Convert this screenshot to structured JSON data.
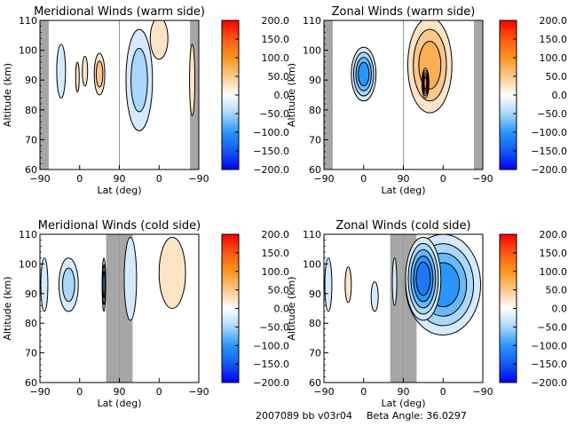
{
  "footer": {
    "run_id": "2007089 bb v03r04",
    "beta_label": "Beta Angle: 36.0297"
  },
  "colors": {
    "gray_band": "#a6a6a6",
    "contour_line": "#000000"
  },
  "chart_data": [
    {
      "type": "heatmap",
      "title": "Meridional Winds (warm side)",
      "xlabel": "Lat (deg)",
      "ylabel": "Altitude (km)",
      "x_ticks": [
        "-90",
        "0",
        "90",
        "0",
        "-90"
      ],
      "y_ticks": [
        60,
        70,
        80,
        90,
        100,
        110
      ],
      "ylim": [
        60,
        110
      ],
      "colorbar": {
        "min": -200,
        "max": 200,
        "ticks": [
          "200.0",
          "150.0",
          "100.0",
          "50.0",
          "0.0",
          "-50.0",
          "-100.0",
          "-150.0",
          "-200.0"
        ]
      },
      "gray_bands": [
        [
          -90,
          -70
        ],
        [
          -70,
          -90
        ]
      ],
      "blobs": [
        {
          "half": "left",
          "lat": -42,
          "alt": 93,
          "dlat": 10,
          "dalt": 9,
          "value": -30
        },
        {
          "half": "left",
          "lat": -5,
          "alt": 91,
          "dlat": 4,
          "dalt": 5,
          "value": 30
        },
        {
          "half": "left",
          "lat": 12,
          "alt": 93,
          "dlat": 6,
          "dalt": 5,
          "value": 25
        },
        {
          "half": "left",
          "lat": 45,
          "alt": 92,
          "dlat": 12,
          "dalt": 7,
          "value": 55
        },
        {
          "half": "right",
          "lat": 45,
          "alt": 90,
          "dlat": 30,
          "dalt": 17,
          "value": -55
        },
        {
          "half": "right",
          "lat": 0,
          "alt": 104,
          "dlat": 20,
          "dalt": 7,
          "value": 20
        },
        {
          "half": "right",
          "lat": -75,
          "alt": 90,
          "dlat": 6,
          "dalt": 12,
          "value": 25
        }
      ]
    },
    {
      "type": "heatmap",
      "title": "Zonal Winds (warm side)",
      "xlabel": "Lat (deg)",
      "ylabel": "Altitude (km)",
      "x_ticks": [
        "-90",
        "0",
        "90",
        "0",
        "-90"
      ],
      "y_ticks": [
        60,
        70,
        80,
        90,
        100,
        110
      ],
      "ylim": [
        60,
        110
      ],
      "colorbar": {
        "min": -200,
        "max": 200,
        "ticks": [
          "200.0",
          "150.0",
          "100.0",
          "50.0",
          "0.0",
          "-50.0",
          "-100.0",
          "-150.0",
          "-200.0"
        ]
      },
      "gray_bands": [
        [
          -90,
          -70
        ],
        [
          -70,
          -90
        ]
      ],
      "blobs": [
        {
          "half": "left",
          "lat": 0,
          "alt": 92,
          "dlat": 28,
          "dalt": 9,
          "value": -90
        },
        {
          "half": "right",
          "lat": 30,
          "alt": 95,
          "dlat": 50,
          "dalt": 16,
          "value": 85
        },
        {
          "half": "right",
          "lat": 40,
          "alt": 89,
          "dlat": 8,
          "dalt": 5,
          "value": 130
        }
      ]
    },
    {
      "type": "heatmap",
      "title": "Meridional Winds (cold side)",
      "xlabel": "Lat (deg)",
      "ylabel": "Altitude (km)",
      "x_ticks": [
        "-90",
        "0",
        "90",
        "0",
        "-90"
      ],
      "y_ticks": [
        60,
        70,
        80,
        90,
        100,
        110
      ],
      "ylim": [
        60,
        110
      ],
      "colorbar": {
        "min": -200,
        "max": 200,
        "ticks": [
          "200.0",
          "150.0",
          "100.0",
          "50.0",
          "0.0",
          "-50.0",
          "-100.0",
          "-150.0",
          "-200.0"
        ]
      },
      "gray_bands": [
        [
          60,
          120
        ]
      ],
      "blobs": [
        {
          "half": "left",
          "lat": -80,
          "alt": 93,
          "dlat": 8,
          "dalt": 9,
          "value": -30
        },
        {
          "half": "left",
          "lat": -25,
          "alt": 93,
          "dlat": 22,
          "dalt": 9,
          "value": -60
        },
        {
          "half": "left",
          "lat": 55,
          "alt": 93,
          "dlat": 4,
          "dalt": 9,
          "value": -70
        },
        {
          "half": "right",
          "lat": 65,
          "alt": 95,
          "dlat": 14,
          "dalt": 14,
          "value": -35
        },
        {
          "half": "right",
          "lat": -30,
          "alt": 97,
          "dlat": 30,
          "dalt": 12,
          "value": 35
        }
      ]
    },
    {
      "type": "heatmap",
      "title": "Zonal Winds (cold side)",
      "xlabel": "Lat (deg)",
      "ylabel": "Altitude (km)",
      "x_ticks": [
        "-90",
        "0",
        "90",
        "0",
        "-90"
      ],
      "y_ticks": [
        60,
        70,
        80,
        90,
        100,
        110
      ],
      "ylim": [
        60,
        110
      ],
      "colorbar": {
        "min": -200,
        "max": 200,
        "ticks": [
          "200.0",
          "150.0",
          "100.0",
          "50.0",
          "0.0",
          "-50.0",
          "-100.0",
          "-150.0",
          "-200.0"
        ]
      },
      "gray_bands": [
        [
          60,
          120
        ]
      ],
      "blobs": [
        {
          "half": "left",
          "lat": -80,
          "alt": 93,
          "dlat": 8,
          "dalt": 9,
          "value": -30
        },
        {
          "half": "left",
          "lat": -35,
          "alt": 93,
          "dlat": 7,
          "dalt": 6,
          "value": 35
        },
        {
          "half": "left",
          "lat": 25,
          "alt": 89,
          "dlat": 8,
          "dalt": 5,
          "value": -30
        },
        {
          "half": "left",
          "lat": 70,
          "alt": 94,
          "dlat": 5,
          "dalt": 8,
          "value": -30
        },
        {
          "half": "right",
          "lat": 0,
          "alt": 93,
          "dlat": 85,
          "dalt": 17,
          "value": -90
        },
        {
          "half": "right",
          "lat": 45,
          "alt": 95,
          "dlat": 40,
          "dalt": 14,
          "value": -130
        }
      ]
    }
  ]
}
